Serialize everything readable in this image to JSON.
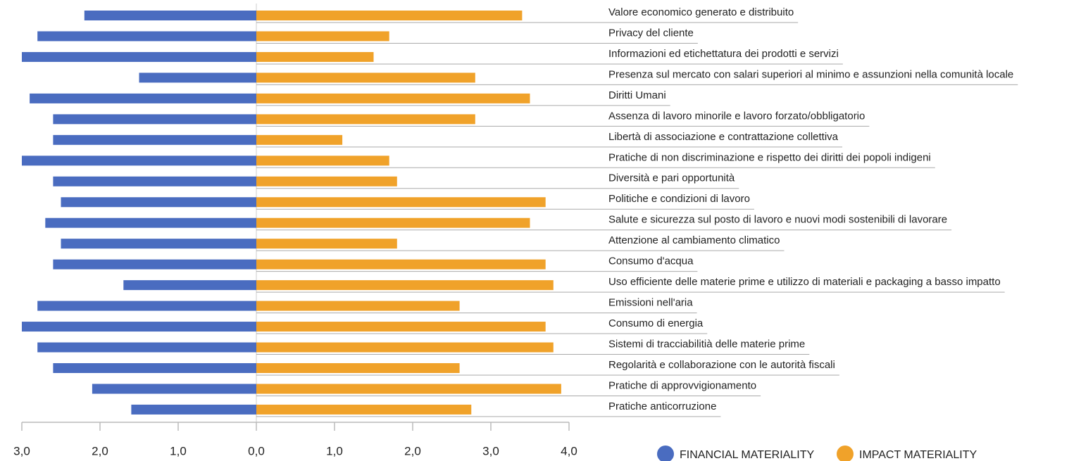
{
  "chart_data": {
    "type": "butterfly-bar",
    "categories": [
      "Valore economico generato e distribuito",
      "Privacy del cliente",
      "Informazioni ed etichettatura dei prodotti e servizi",
      "Presenza sul mercato con salari superiori al minimo e assunzioni nella comunità locale",
      "Diritti Umani",
      "Assenza di lavoro minorile e lavoro forzato/obbligatorio",
      "Libertà di associazione e contrattazione collettiva",
      "Pratiche di non discriminazione e rispetto dei diritti dei popoli indigeni",
      "Diversità e pari opportunità",
      "Politiche e condizioni di lavoro",
      "Salute e sicurezza sul posto di lavoro e nuovi modi sostenibili di lavorare",
      "Attenzione al cambiamento climatico",
      "Consumo d'acqua",
      "Uso efficiente delle materie prime e utilizzo di materiali e packaging a basso impatto",
      "Emissioni nell'aria",
      "Consumo di energia",
      "Sistemi di tracciabilitià delle materie prime",
      "Regolarità e collaborazione con le autorità fiscali",
      "Pratiche di approvvigionamento",
      "Pratiche anticorruzione"
    ],
    "series": [
      {
        "name": "FINANCIAL MATERIALITY",
        "color": "#4a6cc0",
        "axis": "x2",
        "values": [
          2.2,
          2.8,
          3.0,
          1.5,
          2.9,
          2.6,
          2.6,
          3.0,
          2.6,
          2.5,
          2.7,
          2.5,
          2.6,
          1.7,
          2.8,
          3.0,
          2.8,
          2.6,
          2.1,
          1.6
        ]
      },
      {
        "name": "IMPACT MATERIALITY",
        "color": "#f0a22a",
        "values": [
          3.4,
          1.7,
          1.5,
          2.8,
          3.5,
          2.8,
          1.1,
          1.7,
          1.8,
          3.7,
          3.5,
          1.8,
          3.7,
          3.8,
          2.6,
          3.7,
          3.8,
          2.6,
          3.9,
          2.75
        ]
      }
    ],
    "xlim": [
      0,
      4
    ],
    "xticks": [
      {
        "value": 0,
        "label": "0,0"
      },
      {
        "value": 1,
        "label": "1,0"
      },
      {
        "value": 2,
        "label": "2,0"
      },
      {
        "value": 3,
        "label": "3,0"
      },
      {
        "value": 4,
        "label": "4,0"
      }
    ],
    "x2lim": [
      0,
      3
    ],
    "x2ticks": [
      {
        "value": 1,
        "label": "1,0"
      },
      {
        "value": 2,
        "label": "2,0"
      },
      {
        "value": 3,
        "label": "3,0"
      }
    ],
    "legend": "bottom-right"
  }
}
